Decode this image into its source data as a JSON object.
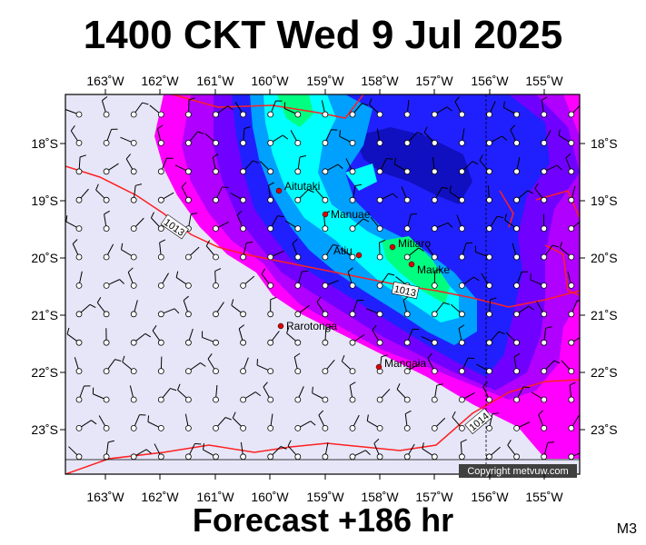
{
  "title": "1400 CKT Wed 9 Jul 2025",
  "footer": "Forecast +186 hr",
  "corner_label": "M3",
  "copyright": "Copyright metvuw.com",
  "lon_labels": [
    "163˚W",
    "162˚W",
    "161˚W",
    "160˚W",
    "159˚W",
    "158˚W",
    "157˚W",
    "156˚W",
    "155˚W"
  ],
  "lat_labels": [
    "18˚S",
    "19˚S",
    "20˚S",
    "21˚S",
    "22˚S",
    "23˚S"
  ],
  "isobars": [
    "1013",
    "1013",
    "1014"
  ],
  "places": [
    {
      "name": "Aitutaki"
    },
    {
      "name": "Manuae"
    },
    {
      "name": "Atiu"
    },
    {
      "name": "Mitiaro"
    },
    {
      "name": "Mauke"
    },
    {
      "name": "Rarotonga"
    },
    {
      "name": "Mangaia"
    }
  ],
  "colors": {
    "background": "#e6e6f8",
    "magenta": "#ff00ff",
    "purple": "#b000ff",
    "violet": "#7000ff",
    "blue": "#2020ff",
    "deep_blue": "#1010c0",
    "sky": "#00a0ff",
    "cyan": "#00ffff",
    "green": "#00ff80",
    "isobar": "#ff2020",
    "town": "#dd0000"
  }
}
